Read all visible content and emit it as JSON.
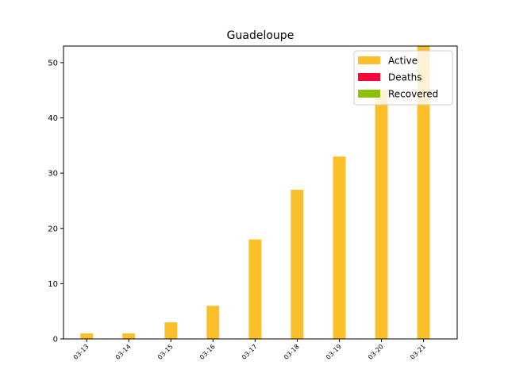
{
  "chart_data": {
    "type": "bar",
    "title": "Guadeloupe",
    "xlabel": "",
    "ylabel": "",
    "categories": [
      "03-13",
      "03-14",
      "03-15",
      "03-16",
      "03-17",
      "03-18",
      "03-19",
      "03-20",
      "03-21"
    ],
    "series": [
      {
        "name": "Active",
        "color": "#fbbf2a",
        "values": [
          1,
          1,
          3,
          6,
          18,
          27,
          33,
          45,
          53
        ]
      },
      {
        "name": "Deaths",
        "color": "#f5093b",
        "values": [
          0,
          0,
          0,
          0,
          0,
          0,
          0,
          0,
          0
        ]
      },
      {
        "name": "Recovered",
        "color": "#8cc10a",
        "values": [
          0,
          0,
          0,
          0,
          0,
          0,
          0,
          0,
          0
        ]
      }
    ],
    "stacked": true,
    "ylim": [
      0,
      53
    ],
    "yticks": [
      0,
      10,
      20,
      30,
      40,
      50
    ],
    "grid": false,
    "legend_position": "top-right"
  }
}
